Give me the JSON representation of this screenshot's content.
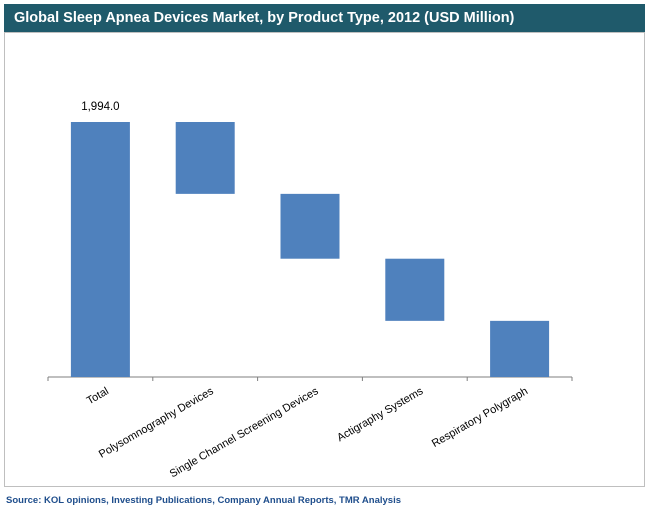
{
  "chart_data": {
    "type": "bar",
    "subtype": "waterfall",
    "title": "Global Sleep Apnea Devices Market, by Product Type, 2012 (USD Million)",
    "categories": [
      "Total",
      "Polysomnography Devices",
      "Single Channel Screening Devices",
      "Actigraphy Systems",
      "Respiratory Polygraph"
    ],
    "values": [
      1994.0,
      562,
      507,
      486,
      439
    ],
    "data_labels": [
      "1,994.0",
      "",
      "",
      "",
      ""
    ],
    "ylim": [
      0,
      1994.0
    ],
    "xlabel": "",
    "ylabel": "",
    "grid": false,
    "bar_color": "#4f81bd"
  },
  "source": "Source: KOL opinions, Investing Publications, Company Annual Reports, TMR Analysis",
  "colors": {
    "title_bar": "#1f5a6b",
    "source_text": "#1f4e8c"
  }
}
